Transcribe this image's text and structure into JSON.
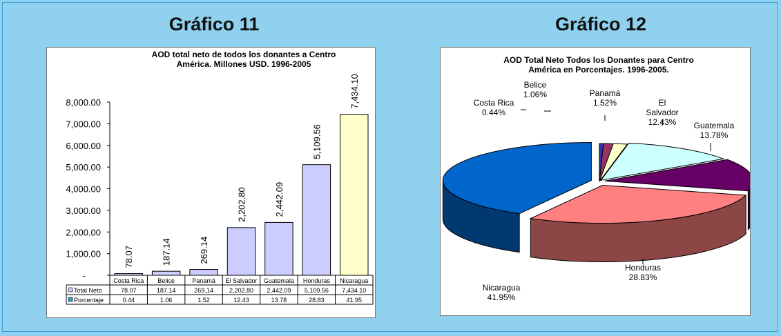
{
  "headings": {
    "chart11": "Gráfico 11",
    "chart12": "Gráfico 12"
  },
  "colors": {
    "background": "#8fd1ee",
    "bar_fill": "#ccccff",
    "bar_last": "#ffffcc",
    "legend_porcentaje": "#3399cc"
  },
  "chart_data": [
    {
      "type": "bar",
      "title": "AOD total neto de todos los donantes a Centro América. Millones USD. 1996-2005",
      "title_lines": [
        "AOD total neto de todos los donantes a Centro",
        "América. Millones USD. 1996-2005"
      ],
      "categories": [
        "Costa Rica",
        "Belice",
        "Panamá",
        "El Salvador",
        "Guatemala",
        "Honduras",
        "Nicaragua"
      ],
      "ylim": [
        0,
        8000
      ],
      "yticks": [
        "-",
        "1,000.00",
        "2,000.00",
        "3,000.00",
        "4,000.00",
        "5,000.00",
        "6,000.00",
        "7,000.00",
        "8,000.00"
      ],
      "series": [
        {
          "name": "Total Neto",
          "values": [
            78.07,
            187.14,
            269.14,
            2202.8,
            2442.09,
            5109.56,
            7434.1
          ],
          "labels": [
            "78.07",
            "187.14",
            "269.14",
            "2,202.80",
            "2,442.09",
            "5,109.56",
            "7,434.10"
          ]
        },
        {
          "name": "Porcentaje",
          "values": [
            0.44,
            1.06,
            1.52,
            12.43,
            13.78,
            28.83,
            41.95
          ],
          "labels": [
            "0.44",
            "1.06",
            "1.52",
            "12.43",
            "13.78",
            "28.83",
            "41.95"
          ]
        }
      ]
    },
    {
      "type": "pie",
      "title": "AOD Total Neto Todos los Donantes para Centro América en Porcentajes. 1996-2005.",
      "title_lines": [
        "AOD Total Neto Todos los Donantes para Centro",
        "América en Porcentajes. 1996-2005."
      ],
      "slices": [
        {
          "name": "Costa Rica",
          "value": 0.44,
          "pct": "0.44%",
          "color": "#3333aa"
        },
        {
          "name": "Belice",
          "value": 1.06,
          "pct": "1.06%",
          "color": "#993366"
        },
        {
          "name": "Panamá",
          "value": 1.52,
          "pct": "1.52%",
          "color": "#ffffcc"
        },
        {
          "name": "El Salvador",
          "value": 12.43,
          "pct": "12.43%",
          "color": "#ccffff"
        },
        {
          "name": "Guatemala",
          "value": 13.78,
          "pct": "13.78%",
          "color": "#660066"
        },
        {
          "name": "Honduras",
          "value": 28.83,
          "pct": "28.83%",
          "color": "#ff8080"
        },
        {
          "name": "Nicaragua",
          "value": 41.95,
          "pct": "41.95%",
          "color": "#0066cc"
        }
      ]
    }
  ]
}
